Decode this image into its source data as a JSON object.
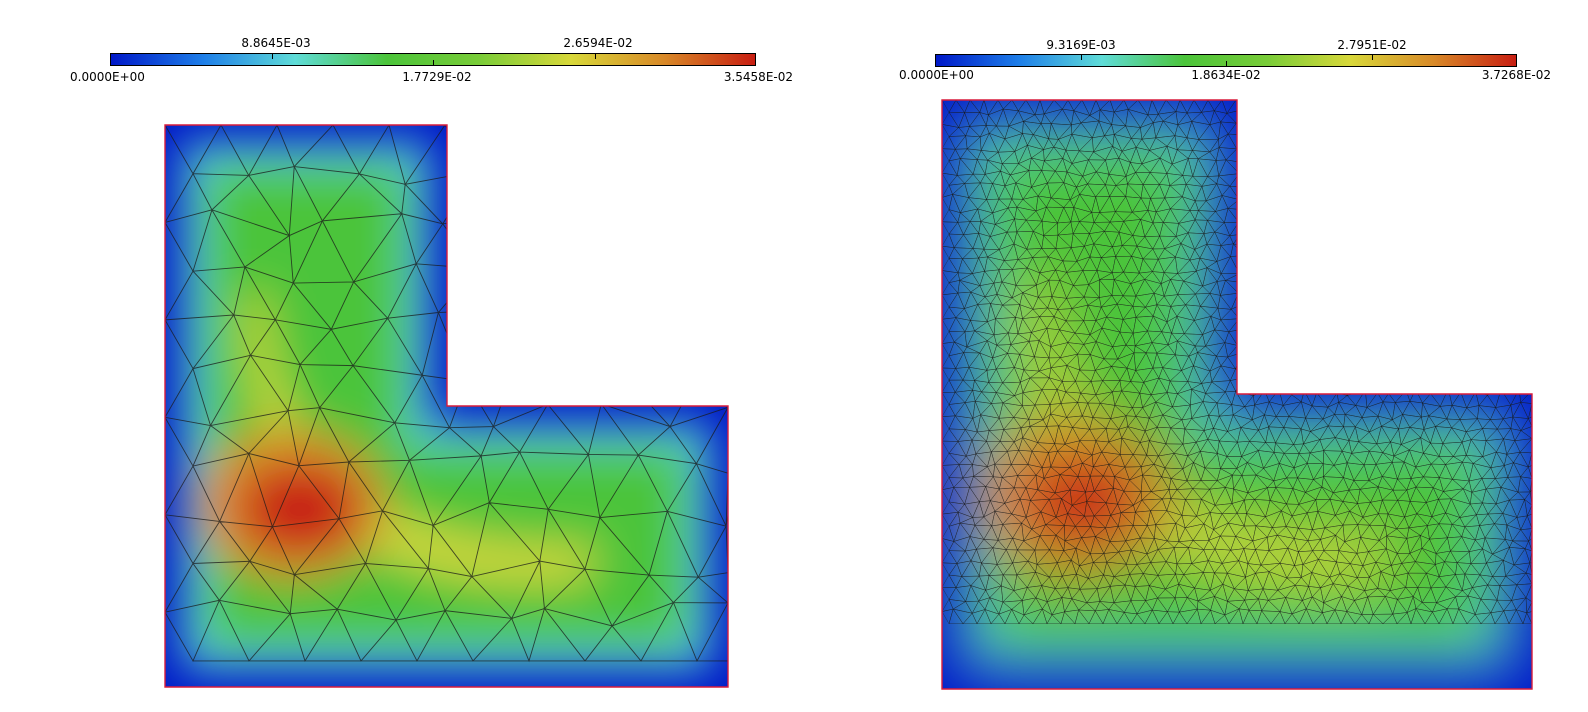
{
  "colors": {
    "colormap": [
      "#0018c8",
      "#1e7ee8",
      "#5fdcd8",
      "#4bc43a",
      "#79cc38",
      "#d8d83a",
      "#d88a28",
      "#c81e12"
    ],
    "boundary": "#d81c3c",
    "mesh": "#1a1a1a"
  },
  "left_plot": {
    "colorbar": {
      "min": "0.0000E+00",
      "q1": "8.8645E-03",
      "mid": "1.7729E-02",
      "q3": "2.6594E-02",
      "max": "3.5458E-02"
    },
    "domain_shape": "L-shape",
    "mesh_density": "coarse"
  },
  "right_plot": {
    "colorbar": {
      "min": "0.0000E+00",
      "q1": "9.3169E-03",
      "mid": "1.8634E-02",
      "q3": "2.7951E-02",
      "max": "3.7268E-02"
    },
    "domain_shape": "L-shape",
    "mesh_density": "fine"
  }
}
